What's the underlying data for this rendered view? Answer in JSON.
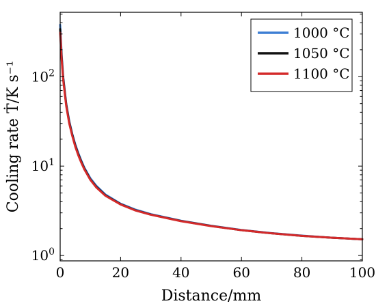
{
  "chart_data": {
    "type": "line",
    "title": "",
    "xlabel": "Distance/mm",
    "ylabel": "Cooling rate Ṫ/K s⁻¹",
    "xlim": [
      0,
      100
    ],
    "ylim_log10": [
      -0.06,
      2.72
    ],
    "yscale": "log",
    "grid": false,
    "legend_position": "top-right",
    "x_ticks": [
      0,
      20,
      40,
      60,
      80,
      100
    ],
    "y_ticks": [
      {
        "value": 1,
        "label_base": "10",
        "label_exp": "0"
      },
      {
        "value": 10,
        "label_base": "10",
        "label_exp": "1"
      },
      {
        "value": 100,
        "label_base": "10",
        "label_exp": "2"
      }
    ],
    "x": [
      0,
      0.5,
      1,
      2,
      3,
      4,
      5,
      6,
      7,
      8,
      10,
      12,
      15,
      20,
      25,
      30,
      40,
      50,
      60,
      70,
      80,
      90,
      100
    ],
    "series": [
      {
        "name": "1000 °C",
        "color": "#3d7fd4",
        "values": [
          380,
          175,
          100,
          50,
          32,
          23,
          17.5,
          14,
          11.5,
          9.6,
          7.3,
          6.0,
          4.8,
          3.8,
          3.25,
          2.9,
          2.45,
          2.15,
          1.93,
          1.78,
          1.67,
          1.58,
          1.52
        ]
      },
      {
        "name": "1050 °C",
        "color": "#111111",
        "values": [
          340,
          165,
          97,
          49,
          31,
          22.5,
          17,
          13.6,
          11.2,
          9.4,
          7.1,
          5.85,
          4.7,
          3.75,
          3.2,
          2.87,
          2.43,
          2.14,
          1.92,
          1.77,
          1.66,
          1.58,
          1.52
        ]
      },
      {
        "name": "1100 °C",
        "color": "#d42a2a",
        "values": [
          310,
          155,
          92,
          47,
          30,
          21.8,
          16.5,
          13.2,
          10.9,
          9.2,
          7.0,
          5.75,
          4.65,
          3.72,
          3.18,
          2.86,
          2.42,
          2.13,
          1.92,
          1.77,
          1.66,
          1.58,
          1.52
        ]
      }
    ]
  }
}
